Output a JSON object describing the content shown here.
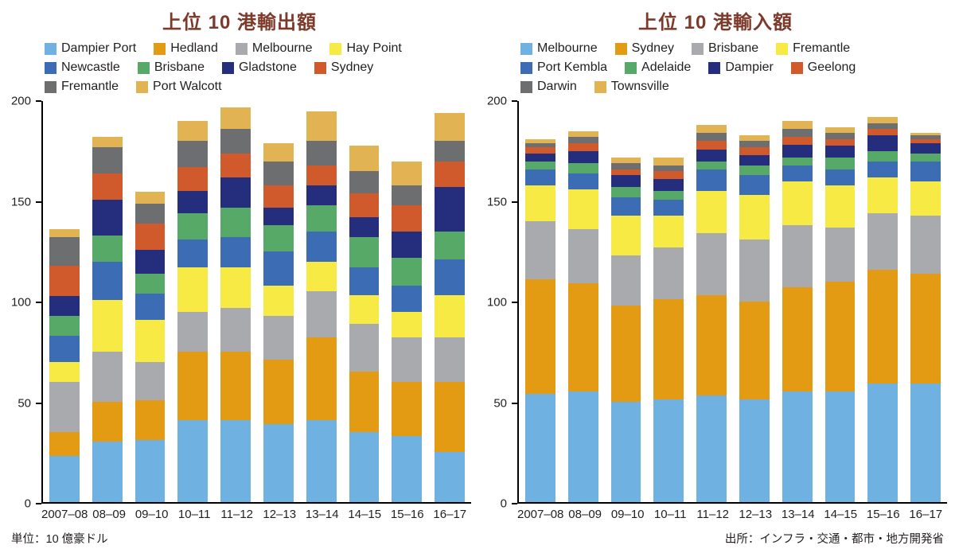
{
  "chart_data": [
    {
      "type": "bar",
      "stacked": true,
      "title": "上位 10 港輸出額",
      "categories": [
        "2007–08",
        "08–09",
        "09–10",
        "10–11",
        "11–12",
        "12–13",
        "13–14",
        "14–15",
        "15–16",
        "16–17"
      ],
      "ylim": [
        0,
        200
      ],
      "yticks": [
        0,
        50,
        100,
        150,
        200
      ],
      "grid": false,
      "legend_position": "top-left",
      "legend_rows": [
        [
          0,
          1,
          2,
          3
        ],
        [
          4,
          5,
          6,
          7
        ],
        [
          8,
          9
        ]
      ],
      "series": [
        {
          "name": "Dampier Port",
          "color": "#6fb1e0",
          "values": [
            23,
            30,
            31,
            41,
            41,
            39,
            41,
            35,
            33,
            25
          ]
        },
        {
          "name": "Hedland",
          "color": "#e29b13",
          "values": [
            12,
            20,
            20,
            34,
            34,
            32,
            41,
            30,
            27,
            35
          ]
        },
        {
          "name": "Melbourne",
          "color": "#a8aaad",
          "values": [
            25,
            25,
            19,
            20,
            22,
            22,
            23,
            24,
            22,
            22
          ]
        },
        {
          "name": "Hay Point",
          "color": "#f8ea45",
          "values": [
            10,
            26,
            21,
            22,
            20,
            15,
            15,
            14,
            13,
            21
          ]
        },
        {
          "name": "Newcastle",
          "color": "#3b6cb4",
          "values": [
            13,
            19,
            13,
            14,
            15,
            17,
            15,
            14,
            13,
            18
          ]
        },
        {
          "name": "Brisbane",
          "color": "#56a967",
          "values": [
            10,
            13,
            10,
            13,
            15,
            13,
            13,
            15,
            14,
            14
          ]
        },
        {
          "name": "Gladstone",
          "color": "#252e7d",
          "values": [
            10,
            18,
            12,
            11,
            15,
            9,
            10,
            10,
            13,
            22
          ]
        },
        {
          "name": "Sydney",
          "color": "#d05a2b",
          "values": [
            15,
            13,
            13,
            12,
            12,
            11,
            10,
            12,
            13,
            13
          ]
        },
        {
          "name": "Fremantle",
          "color": "#6c6e70",
          "values": [
            14,
            13,
            10,
            13,
            12,
            12,
            12,
            11,
            10,
            10
          ]
        },
        {
          "name": "Port Walcott",
          "color": "#e1b352",
          "values": [
            4,
            5,
            6,
            10,
            11,
            9,
            15,
            13,
            12,
            14
          ]
        }
      ]
    },
    {
      "type": "bar",
      "stacked": true,
      "title": "上位 10 港輸入額",
      "categories": [
        "2007–08",
        "08–09",
        "09–10",
        "10–11",
        "11–12",
        "12–13",
        "13–14",
        "14–15",
        "15–16",
        "16–17"
      ],
      "ylim": [
        0,
        200
      ],
      "yticks": [
        0,
        50,
        100,
        150,
        200
      ],
      "grid": false,
      "legend_position": "top-left",
      "legend_rows": [
        [
          0,
          1,
          2,
          3
        ],
        [
          4,
          5,
          6,
          7
        ],
        [
          8,
          9
        ]
      ],
      "series": [
        {
          "name": "Melbourne",
          "color": "#6fb1e0",
          "values": [
            54,
            55,
            50,
            51,
            53,
            51,
            55,
            55,
            59,
            59
          ]
        },
        {
          "name": "Sydney",
          "color": "#e29b13",
          "values": [
            57,
            54,
            48,
            50,
            50,
            49,
            52,
            55,
            57,
            55
          ]
        },
        {
          "name": "Brisbane",
          "color": "#a8aaad",
          "values": [
            29,
            27,
            25,
            26,
            31,
            31,
            31,
            27,
            28,
            29
          ]
        },
        {
          "name": "Fremantle",
          "color": "#f8ea45",
          "values": [
            18,
            20,
            20,
            16,
            21,
            22,
            22,
            21,
            18,
            17
          ]
        },
        {
          "name": "Port Kembla",
          "color": "#3b6cb4",
          "values": [
            8,
            8,
            9,
            8,
            11,
            10,
            8,
            8,
            8,
            10
          ]
        },
        {
          "name": "Adelaide",
          "color": "#56a967",
          "values": [
            4,
            5,
            5,
            4,
            4,
            5,
            4,
            6,
            5,
            4
          ]
        },
        {
          "name": "Dampier",
          "color": "#252e7d",
          "values": [
            4,
            6,
            6,
            6,
            6,
            5,
            6,
            6,
            8,
            5
          ]
        },
        {
          "name": "Geelong",
          "color": "#d05a2b",
          "values": [
            3,
            4,
            3,
            4,
            4,
            4,
            4,
            3,
            3,
            2
          ]
        },
        {
          "name": "Darwin",
          "color": "#6c6e70",
          "values": [
            2,
            3,
            3,
            3,
            4,
            3,
            4,
            3,
            3,
            2
          ]
        },
        {
          "name": "Townsville",
          "color": "#e1b352",
          "values": [
            2,
            3,
            3,
            4,
            4,
            3,
            4,
            3,
            3,
            1
          ]
        }
      ]
    }
  ],
  "footer": {
    "unit": "単位：10 億豪ドル",
    "source": "出所：インフラ・交通・都市・地方開発省"
  },
  "colors": {
    "title": "#7d3a2b",
    "axis": "#000000",
    "text": "#231f20"
  }
}
